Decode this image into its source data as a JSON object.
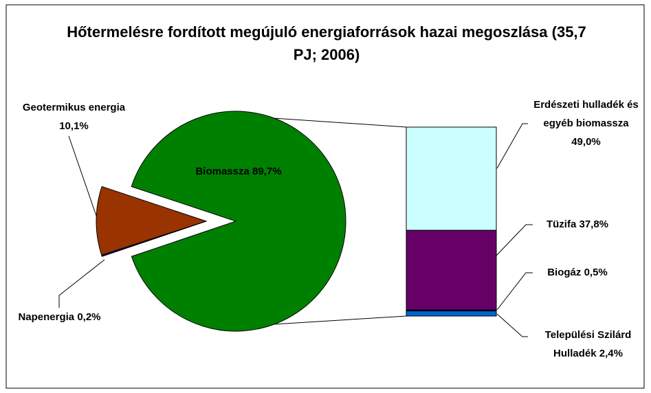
{
  "chart_data": {
    "type": "bar-of-pie",
    "title": "Hőtermelésre fordított megújuló energiaforrások hazai megoszlása (35,7 PJ; 2006)",
    "categories": [
      "Biomassza",
      "Geotermikus energia",
      "Napenergia"
    ],
    "values": [
      89.7,
      10.1,
      0.2
    ],
    "value_labels": [
      "89,7%",
      "10,1%",
      "0,2%"
    ],
    "colors": [
      "#008000",
      "#993300",
      "#000080"
    ],
    "bar": {
      "categories": [
        "Erdészeti hulladék és egyéb biomassza",
        "Tüzifa",
        "Biogáz",
        "Települési Szilárd Hulladék"
      ],
      "values": [
        49.0,
        37.8,
        0.5,
        2.4
      ],
      "value_labels": [
        "49,0%",
        "37,8%",
        "0,5%",
        "2,4%"
      ],
      "colors": [
        "#ccffff",
        "#660066",
        "#000080",
        "#0066cc"
      ]
    }
  }
}
